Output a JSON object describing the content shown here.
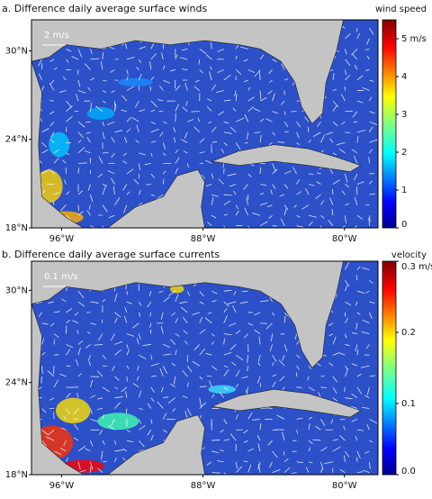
{
  "panels": [
    {
      "title": "a. Difference daily average surface winds",
      "scale_label": "2 m/s",
      "colorbar": {
        "label": "wind speed",
        "range": [
          0,
          5.5
        ],
        "ticks": [
          0,
          1,
          2,
          3,
          4,
          {
            "value": 5,
            "label": "5 m/s"
          }
        ]
      },
      "lat": {
        "range": [
          18,
          32.1
        ],
        "ticks": [
          {
            "value": 18,
            "label": "18°N"
          },
          {
            "value": 24,
            "label": "24°N"
          },
          {
            "value": 30,
            "label": "30°N"
          }
        ]
      },
      "lon": {
        "range": [
          -97.7,
          -78.1
        ],
        "ticks": [
          {
            "value": -96,
            "label": "96°W"
          },
          {
            "value": -88,
            "label": "88°W"
          },
          {
            "value": -80,
            "label": "80°W"
          }
        ]
      }
    },
    {
      "title": "b. Difference daily average surface currents",
      "scale_label": "0.1 m/s",
      "colorbar": {
        "label": "velocity",
        "range": [
          0,
          0.3
        ],
        "ticks": [
          {
            "value": 0,
            "label": "0.0"
          },
          0.1,
          0.2,
          {
            "value": 0.3,
            "label": "0.3 m/s"
          }
        ]
      },
      "lat": {
        "range": [
          18,
          31.9
        ],
        "ticks": [
          {
            "value": 18,
            "label": "18°N"
          },
          {
            "value": 24,
            "label": "24°N"
          },
          {
            "value": 30,
            "label": "30°N"
          }
        ]
      },
      "lon": {
        "range": [
          -97.7,
          -78.1
        ],
        "ticks": [
          {
            "value": -96,
            "label": "96°W"
          },
          {
            "value": -88,
            "label": "88°W"
          },
          {
            "value": -80,
            "label": "80°W"
          }
        ]
      }
    }
  ]
}
